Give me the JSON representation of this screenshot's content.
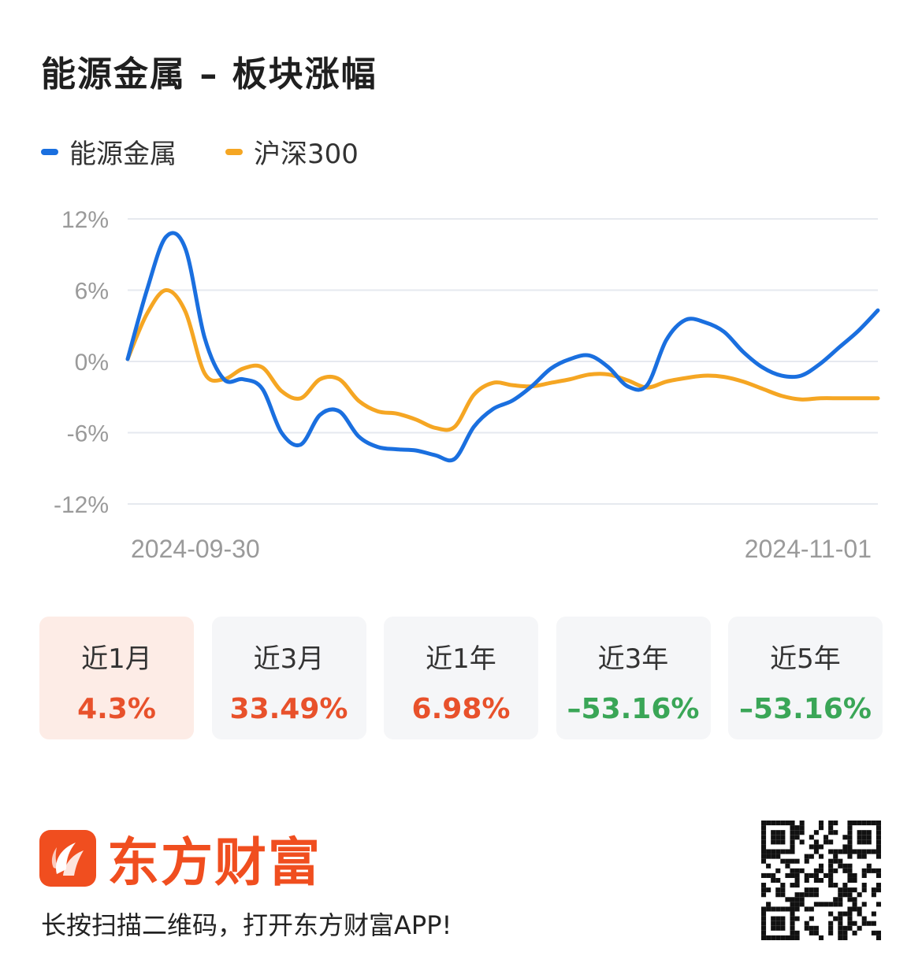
{
  "title": "能源金属 – 板块涨幅",
  "legend": [
    {
      "label": "能源金属",
      "color": "#1a6fdf"
    },
    {
      "label": "沪深300",
      "color": "#f5a623"
    }
  ],
  "chart_data": {
    "type": "line",
    "ylim": [
      -12,
      12
    ],
    "ytick_labels": [
      "12%",
      "6%",
      "0%",
      "-6%",
      "-12%"
    ],
    "ytick_values": [
      12,
      6,
      0,
      -6,
      -12
    ],
    "x_labels": [
      "2024-09-30",
      "2024-11-01"
    ],
    "grid": true,
    "legend_position": "top-left",
    "series": [
      {
        "name": "能源金属",
        "color": "#1a6fdf",
        "values": [
          0.2,
          6,
          10.5,
          9.5,
          2,
          -1.5,
          -1.5,
          -2.3,
          -6,
          -7,
          -4.5,
          -4.2,
          -6.3,
          -7.2,
          -7.4,
          -7.5,
          -7.9,
          -8.2,
          -5.5,
          -4,
          -3.3,
          -2.1,
          -0.6,
          0.2,
          0.5,
          -0.5,
          -2.1,
          -2,
          1.8,
          3.5,
          3.3,
          2.5,
          0.8,
          -0.5,
          -1.2,
          -1.2,
          -0.2,
          1.2,
          2.6,
          4.3
        ]
      },
      {
        "name": "沪深300",
        "color": "#f5a623",
        "values": [
          0.2,
          4,
          6,
          4.2,
          -1,
          -1.5,
          -0.6,
          -0.5,
          -2.5,
          -3.1,
          -1.5,
          -1.5,
          -3.3,
          -4.2,
          -4.4,
          -4.9,
          -5.6,
          -5.5,
          -2.8,
          -1.8,
          -2,
          -2.1,
          -1.8,
          -1.5,
          -1.1,
          -1.1,
          -1.6,
          -2.2,
          -1.7,
          -1.4,
          -1.2,
          -1.3,
          -1.7,
          -2.3,
          -2.9,
          -3.2,
          -3.1,
          -3.1,
          -3.1,
          -3.1
        ]
      }
    ]
  },
  "periods": [
    {
      "label": "近1月",
      "value": "4.3%",
      "color": "#e8512b",
      "active": true
    },
    {
      "label": "近3月",
      "value": "33.49%",
      "color": "#e8512b",
      "active": false
    },
    {
      "label": "近1年",
      "value": "6.98%",
      "color": "#e8512b",
      "active": false
    },
    {
      "label": "近3年",
      "value": "–53.16%",
      "color": "#3aa657",
      "active": false
    },
    {
      "label": "近5年",
      "value": "–53.16%",
      "color": "#3aa657",
      "active": false
    }
  ],
  "brand": {
    "name": "东方财富",
    "color": "#f04e1f",
    "icon": "eastmoney-logo-icon"
  },
  "footer_text": "长按扫描二维码，打开东方财富APP!",
  "qr_icon": "qr-code-icon"
}
